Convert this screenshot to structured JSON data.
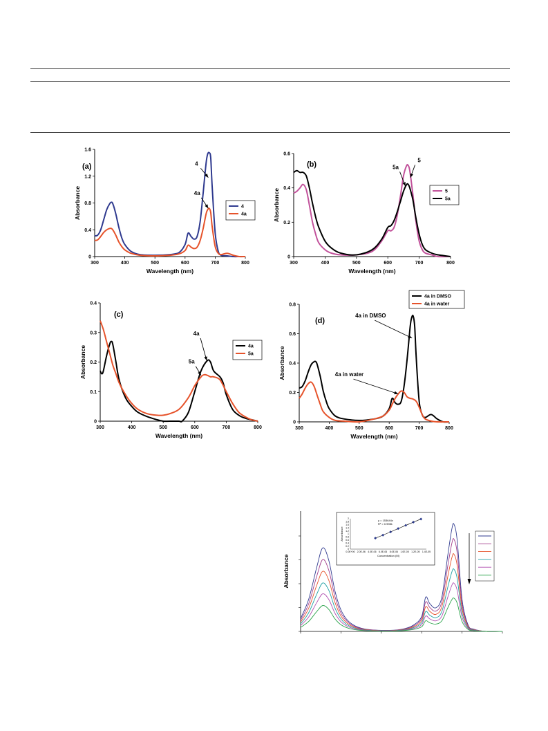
{
  "charts": [
    {
      "panel": "(a)",
      "type": "line",
      "xlabel": "Wavelength (nm)",
      "ylabel": "Absorbance",
      "xlim": [
        300,
        800
      ],
      "ylim": [
        0,
        1.6
      ],
      "xticks": [
        300,
        400,
        500,
        600,
        700,
        800
      ],
      "yticks": [
        0,
        0.4,
        0.8,
        1.2,
        1.6
      ],
      "ytick_labels": [
        "0",
        "0.4",
        "0.8",
        "1.2",
        "1.6"
      ],
      "legend": "right-middle",
      "annotations": [
        {
          "text": "4",
          "tx": 638,
          "ty": 1.36,
          "ax": 677,
          "ay": 1.18
        },
        {
          "text": "4a",
          "tx": 640,
          "ty": 0.92,
          "ax": 677,
          "ay": 0.72
        }
      ],
      "series": [
        {
          "name": "4",
          "color": "#2f3a8f",
          "x": [
            300,
            310,
            320,
            330,
            340,
            350,
            355,
            360,
            370,
            380,
            390,
            400,
            420,
            450,
            500,
            550,
            580,
            600,
            610,
            620,
            630,
            640,
            650,
            660,
            670,
            675,
            680,
            685,
            690,
            700,
            710,
            720,
            740,
            760,
            780,
            800
          ],
          "y": [
            0.31,
            0.32,
            0.4,
            0.55,
            0.7,
            0.79,
            0.81,
            0.79,
            0.64,
            0.44,
            0.28,
            0.18,
            0.08,
            0.03,
            0.02,
            0.03,
            0.06,
            0.18,
            0.35,
            0.3,
            0.26,
            0.3,
            0.52,
            0.95,
            1.4,
            1.53,
            1.55,
            1.48,
            1.05,
            0.35,
            0.08,
            0.02,
            0.01,
            0.0,
            0.0,
            0.0
          ]
        },
        {
          "name": "4a",
          "color": "#e6532b",
          "x": [
            300,
            310,
            320,
            330,
            340,
            350,
            355,
            360,
            370,
            380,
            390,
            400,
            420,
            450,
            500,
            550,
            580,
            600,
            610,
            620,
            630,
            640,
            650,
            660,
            670,
            675,
            680,
            685,
            690,
            700,
            710,
            720,
            740,
            760,
            780,
            800
          ],
          "y": [
            0.24,
            0.25,
            0.3,
            0.36,
            0.4,
            0.42,
            0.42,
            0.4,
            0.32,
            0.22,
            0.15,
            0.1,
            0.05,
            0.02,
            0.01,
            0.02,
            0.04,
            0.09,
            0.17,
            0.14,
            0.12,
            0.14,
            0.24,
            0.42,
            0.64,
            0.7,
            0.72,
            0.66,
            0.45,
            0.15,
            0.05,
            0.03,
            0.05,
            0.02,
            0.0,
            0.0
          ]
        }
      ]
    },
    {
      "panel": "(b)",
      "type": "line",
      "xlabel": "Wavelength (nm)",
      "ylabel": "Absorbance",
      "xlim": [
        300,
        800
      ],
      "ylim": [
        0,
        0.6
      ],
      "xticks": [
        300,
        400,
        500,
        600,
        700,
        800
      ],
      "yticks": [
        0,
        0.2,
        0.4,
        0.6
      ],
      "ytick_labels": [
        "0",
        "0.2",
        "0.4",
        "0.6"
      ],
      "legend": "right-middle",
      "annotations": [
        {
          "text": "5a",
          "tx": 625,
          "ty": 0.51,
          "ax": 656,
          "ay": 0.41
        },
        {
          "text": "5",
          "tx": 700,
          "ty": 0.55,
          "ax": 672,
          "ay": 0.46
        }
      ],
      "series": [
        {
          "name": "5",
          "color": "#c2529b",
          "x": [
            300,
            310,
            320,
            330,
            340,
            350,
            360,
            370,
            380,
            400,
            420,
            450,
            500,
            550,
            580,
            600,
            610,
            620,
            630,
            640,
            650,
            660,
            665,
            670,
            680,
            690,
            700,
            710,
            720,
            740,
            760,
            800
          ],
          "y": [
            0.37,
            0.38,
            0.4,
            0.42,
            0.39,
            0.3,
            0.2,
            0.13,
            0.08,
            0.04,
            0.02,
            0.01,
            0.01,
            0.03,
            0.09,
            0.15,
            0.15,
            0.17,
            0.24,
            0.35,
            0.47,
            0.53,
            0.53,
            0.5,
            0.36,
            0.2,
            0.09,
            0.04,
            0.02,
            0.01,
            0.0,
            0.0
          ]
        },
        {
          "name": "5a",
          "color": "#000000",
          "x": [
            300,
            310,
            320,
            330,
            340,
            350,
            360,
            370,
            380,
            400,
            420,
            450,
            500,
            550,
            580,
            600,
            610,
            620,
            630,
            640,
            650,
            660,
            665,
            670,
            680,
            690,
            700,
            710,
            720,
            740,
            760,
            800
          ],
          "y": [
            0.49,
            0.5,
            0.49,
            0.49,
            0.47,
            0.4,
            0.31,
            0.23,
            0.17,
            0.09,
            0.05,
            0.02,
            0.01,
            0.04,
            0.1,
            0.17,
            0.18,
            0.21,
            0.26,
            0.32,
            0.38,
            0.42,
            0.42,
            0.4,
            0.33,
            0.22,
            0.13,
            0.07,
            0.04,
            0.02,
            0.01,
            0.0
          ]
        }
      ]
    },
    {
      "panel": "(c)",
      "type": "line",
      "xlabel": "Wavelength (nm)",
      "ylabel": "Absorbance",
      "xlim": [
        300,
        800
      ],
      "ylim": [
        0,
        0.4
      ],
      "xticks": [
        300,
        400,
        500,
        600,
        700,
        800
      ],
      "yticks": [
        0,
        0.1,
        0.2,
        0.3,
        0.4
      ],
      "ytick_labels": [
        "0",
        "0.1",
        "0.2",
        "0.3",
        "0.4"
      ],
      "legend": "right-middle",
      "annotations": [
        {
          "text": "4a",
          "tx": 605,
          "ty": 0.29,
          "ax": 638,
          "ay": 0.205
        },
        {
          "text": "5a",
          "tx": 590,
          "ty": 0.195,
          "ax": 620,
          "ay": 0.155
        }
      ],
      "series": [
        {
          "name": "4a",
          "color": "#000000",
          "x": [
            300,
            305,
            310,
            320,
            330,
            335,
            340,
            350,
            360,
            380,
            400,
            420,
            450,
            480,
            500,
            520,
            550,
            560,
            580,
            600,
            620,
            640,
            650,
            660,
            680,
            690,
            700,
            720,
            740,
            760,
            780,
            800
          ],
          "y": [
            0.17,
            0.16,
            0.17,
            0.22,
            0.26,
            0.27,
            0.26,
            0.2,
            0.14,
            0.08,
            0.05,
            0.03,
            0.015,
            0.005,
            0.0,
            0.0,
            0.0,
            0.0,
            0.03,
            0.1,
            0.17,
            0.205,
            0.2,
            0.17,
            0.15,
            0.13,
            0.09,
            0.04,
            0.02,
            0.01,
            0.005,
            0.0
          ]
        },
        {
          "name": "5a",
          "color": "#e6532b",
          "x": [
            300,
            310,
            320,
            330,
            340,
            350,
            360,
            380,
            400,
            420,
            450,
            480,
            500,
            520,
            550,
            580,
            600,
            620,
            630,
            640,
            650,
            660,
            680,
            700,
            720,
            740,
            760,
            780,
            800
          ],
          "y": [
            0.34,
            0.31,
            0.27,
            0.23,
            0.19,
            0.16,
            0.13,
            0.09,
            0.06,
            0.04,
            0.025,
            0.02,
            0.02,
            0.025,
            0.04,
            0.08,
            0.12,
            0.15,
            0.157,
            0.155,
            0.15,
            0.15,
            0.14,
            0.1,
            0.06,
            0.03,
            0.015,
            0.005,
            0.0
          ]
        }
      ]
    },
    {
      "panel": "(d)",
      "type": "line",
      "xlabel": "Wavelength (nm)",
      "ylabel": "Absorbance",
      "xlim": [
        300,
        800
      ],
      "ylim": [
        0,
        0.8
      ],
      "xticks": [
        300,
        400,
        500,
        600,
        700,
        800
      ],
      "yticks": [
        0,
        0.2,
        0.4,
        0.6,
        0.8
      ],
      "ytick_labels": [
        "0",
        "0.2",
        "0.4",
        "0.6",
        "0.8"
      ],
      "legend": "top-right-outside",
      "annotations": [
        {
          "text": "4a in DMSO",
          "tx": 538,
          "ty": 0.71,
          "ax": 676,
          "ay": 0.57
        },
        {
          "text": "4a in water",
          "tx": 467,
          "ty": 0.31,
          "ax": 630,
          "ay": 0.19
        }
      ],
      "series": [
        {
          "name": "4a in DMSO",
          "color": "#000000",
          "x": [
            300,
            310,
            320,
            330,
            340,
            350,
            355,
            360,
            370,
            380,
            390,
            400,
            420,
            450,
            500,
            550,
            580,
            600,
            610,
            620,
            630,
            640,
            650,
            660,
            670,
            675,
            680,
            685,
            690,
            700,
            710,
            720,
            740,
            760,
            780,
            800
          ],
          "y": [
            0.23,
            0.24,
            0.28,
            0.34,
            0.39,
            0.41,
            0.41,
            0.39,
            0.31,
            0.21,
            0.14,
            0.09,
            0.04,
            0.02,
            0.01,
            0.02,
            0.04,
            0.09,
            0.16,
            0.13,
            0.12,
            0.14,
            0.25,
            0.43,
            0.65,
            0.71,
            0.72,
            0.65,
            0.44,
            0.14,
            0.05,
            0.03,
            0.05,
            0.02,
            0.0,
            0.0
          ]
        },
        {
          "name": "4a in water",
          "color": "#e6532b",
          "x": [
            300,
            310,
            320,
            330,
            340,
            350,
            360,
            370,
            380,
            400,
            420,
            450,
            500,
            550,
            580,
            600,
            610,
            620,
            630,
            640,
            650,
            660,
            670,
            680,
            690,
            700,
            710,
            720,
            740,
            760,
            800
          ],
          "y": [
            0.16,
            0.19,
            0.23,
            0.26,
            0.27,
            0.24,
            0.18,
            0.12,
            0.07,
            0.03,
            0.01,
            0.005,
            0.0,
            0.02,
            0.04,
            0.08,
            0.12,
            0.16,
            0.19,
            0.21,
            0.2,
            0.17,
            0.16,
            0.155,
            0.14,
            0.1,
            0.05,
            0.02,
            0.005,
            0.0,
            0.0
          ]
        }
      ]
    }
  ],
  "chart_data": {
    "type": "line",
    "title": "",
    "ylabel": "Absorbance",
    "xlabel": "",
    "legend_entries": [
      "",
      "",
      "",
      "",
      "",
      ""
    ],
    "legend": "right",
    "series_colors": [
      "#2f3a8f",
      "#a23d8c",
      "#e6532b",
      "#1f9fa3",
      "#b04fb0",
      "#2aa34a"
    ],
    "peak_scales": [
      1.0,
      0.86,
      0.72,
      0.58,
      0.45,
      0.31
    ],
    "inset": {
      "type": "scatter",
      "xlabel": "Concentration (M)",
      "ylabel": "Absorbance",
      "equation": "y = 153644x",
      "r2": "R² = 0.9981",
      "xticks": [
        "0.0E+00",
        "2.0E-06",
        "4.0E-06",
        "6.0E-06",
        "8.0E-06",
        "1.0E-05",
        "1.2E-05",
        "1.4E-05"
      ],
      "yticks": [
        "0",
        "0.2",
        "0.4",
        "0.6",
        "0.8",
        "1",
        "1.2",
        "1.4",
        "1.6",
        "1.8",
        "2"
      ],
      "points_x": [
        4.6,
        6.0,
        7.4,
        8.8,
        10.2,
        11.6,
        13.0
      ],
      "points_y": [
        0.72,
        0.92,
        1.13,
        1.35,
        1.56,
        1.77,
        1.98
      ]
    }
  }
}
